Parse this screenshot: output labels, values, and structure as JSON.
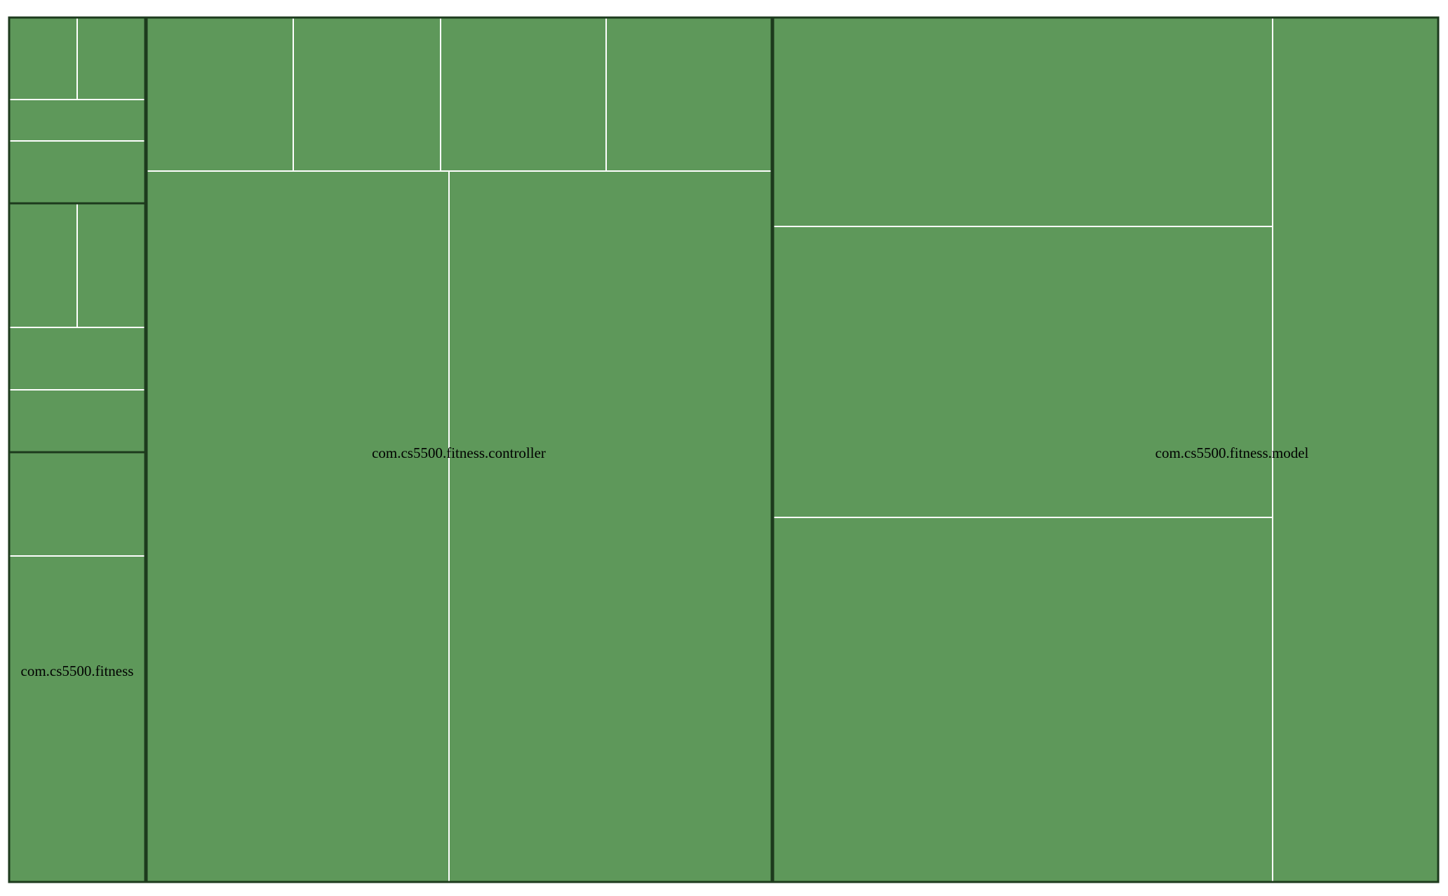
{
  "treemap": {
    "colors": {
      "cell_fill": "#5e985a",
      "cell_stroke": "#ffffff",
      "package_border": "#1d3a1d",
      "background": "#ffffff"
    },
    "packages": [
      {
        "id": "fitness",
        "label": "com.cs5500.fitness"
      },
      {
        "id": "controller",
        "label": "com.cs5500.fitness.controller"
      },
      {
        "id": "model",
        "label": "com.cs5500.fitness.model"
      }
    ]
  }
}
